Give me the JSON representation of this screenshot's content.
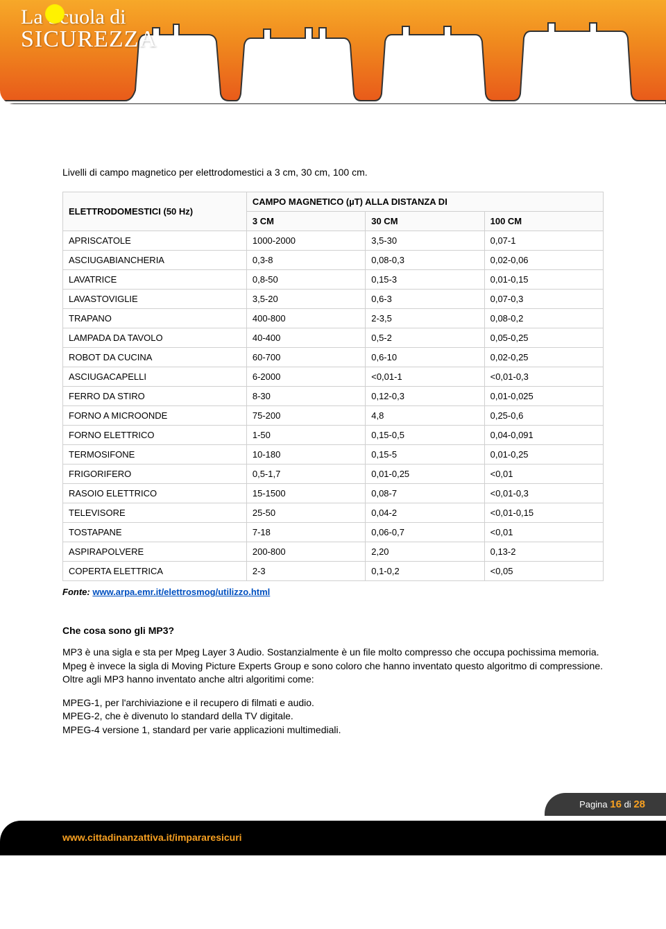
{
  "header": {
    "logo_top": "La Scuola di",
    "logo_bottom": "SICUREZZA",
    "gradient_top": "#f7a829",
    "gradient_mid": "#f08a1e",
    "gradient_bottom": "#e8581a"
  },
  "intro_text": "Livelli di campo magnetico per elettrodomestici a 3 cm, 30 cm, 100 cm.",
  "table": {
    "header_col1": "ELETTRODOMESTICI (50 Hz)",
    "header_span": "CAMPO MAGNETICO (µT) ALLA DISTANZA DI",
    "sub_headers": [
      "3 CM",
      "30 CM",
      "100 CM"
    ],
    "rows": [
      [
        "APRISCATOLE",
        "1000-2000",
        "3,5-30",
        "0,07-1"
      ],
      [
        "ASCIUGABIANCHERIA",
        "0,3-8",
        "0,08-0,3",
        "0,02-0,06"
      ],
      [
        "LAVATRICE",
        "0,8-50",
        "0,15-3",
        "0,01-0,15"
      ],
      [
        "LAVASTOVIGLIE",
        "3,5-20",
        "0,6-3",
        "0,07-0,3"
      ],
      [
        "TRAPANO",
        "400-800",
        "2-3,5",
        "0,08-0,2"
      ],
      [
        "LAMPADA DA TAVOLO",
        "40-400",
        "0,5-2",
        "0,05-0,25"
      ],
      [
        "ROBOT DA CUCINA",
        "60-700",
        "0,6-10",
        "0,02-0,25"
      ],
      [
        "ASCIUGACAPELLI",
        "6-2000",
        "<0,01-1",
        "<0,01-0,3"
      ],
      [
        "FERRO DA STIRO",
        "8-30",
        "0,12-0,3",
        "0,01-0,025"
      ],
      [
        "FORNO A MICROONDE",
        "75-200",
        "4,8",
        "0,25-0,6"
      ],
      [
        "FORNO ELETTRICO",
        "1-50",
        "0,15-0,5",
        "0,04-0,091"
      ],
      [
        "TERMOSIFONE",
        "10-180",
        "0,15-5",
        "0,01-0,25"
      ],
      [
        "FRIGORIFERO",
        "0,5-1,7",
        "0,01-0,25",
        "<0,01"
      ],
      [
        "RASOIO ELETTRICO",
        "15-1500",
        "0,08-7",
        "<0,01-0,3"
      ],
      [
        "TELEVISORE",
        "25-50",
        "0,04-2",
        "<0,01-0,15"
      ],
      [
        "TOSTAPANE",
        "7-18",
        "0,06-0,7",
        "<0,01"
      ],
      [
        "ASPIRAPOLVERE",
        "200-800",
        "2,20",
        "0,13-2"
      ],
      [
        "COPERTA ELETTRICA",
        "2-3",
        "0,1-0,2",
        "<0,05"
      ]
    ],
    "col_widths": [
      "34%",
      "22%",
      "22%",
      "22%"
    ],
    "border_color": "#d0d0d0",
    "header_bg": "#fafafa"
  },
  "source": {
    "label": "Fonte:",
    "link_text": "www.arpa.emr.it/elettrosmog/utilizzo.html",
    "link_color": "#0050c0"
  },
  "mp3": {
    "title": "Che cosa sono gli MP3?",
    "para": "MP3 è una sigla e sta per Mpeg Layer 3 Audio. Sostanzialmente è un file molto compresso che occupa pochissima memoria. Mpeg è invece la sigla di Moving Picture Experts Group e sono coloro che hanno inventato questo algoritmo di compressione. Oltre agli MP3 hanno inventato anche altri algoritimi come:",
    "lines": [
      "MPEG-1, per l'archiviazione e il recupero di filmati e audio.",
      "MPEG-2, che è divenuto lo standard della TV digitale.",
      "MPEG-4 versione 1, standard per varie applicazioni multimediali."
    ]
  },
  "footer": {
    "page_label": "Pagina",
    "page_current": "16",
    "page_sep": "di",
    "page_total": "28",
    "url": "www.cittadinanzattiva.it/impararesicuri",
    "tab_bg": "#3a3a3a",
    "bar_bg": "#000000",
    "accent": "#f7a021"
  }
}
